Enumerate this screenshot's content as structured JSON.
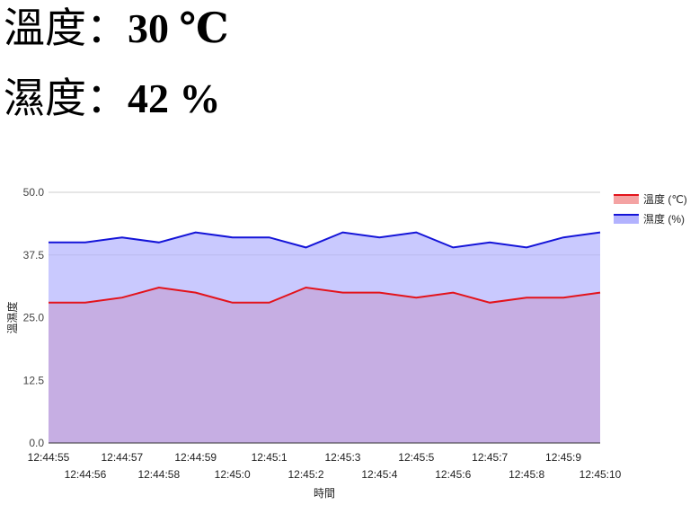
{
  "readings": {
    "temperature": {
      "label": "溫度：",
      "value": "30 ℃"
    },
    "humidity": {
      "label": "濕度：",
      "value": "42 %"
    }
  },
  "chart_data": {
    "type": "area",
    "xlabel": "時間",
    "ylabel": "溫濕度",
    "ylim": [
      0,
      50
    ],
    "y_ticks": [
      "0.0",
      "12.5",
      "25.0",
      "37.5",
      "50.0"
    ],
    "legend_position": "right",
    "grid": true,
    "x": [
      "12:44:55",
      "12:44:56",
      "12:44:57",
      "12:44:58",
      "12:44:59",
      "12:45:0",
      "12:45:1",
      "12:45:2",
      "12:45:3",
      "12:45:4",
      "12:45:5",
      "12:45:6",
      "12:45:7",
      "12:45:8",
      "12:45:9",
      "12:45:10"
    ],
    "series": [
      {
        "name": "溫度 (℃)",
        "line_color": "#e3131b",
        "fill_color": "#f4a3a3",
        "values": [
          28,
          28,
          29,
          31,
          30,
          28,
          28,
          31,
          30,
          30,
          29,
          30,
          28,
          29,
          29,
          30
        ]
      },
      {
        "name": "濕度 (%)",
        "line_color": "#1414d8",
        "fill_color": "#b2b2fe",
        "values": [
          40,
          40,
          41,
          40,
          42,
          41,
          41,
          39,
          42,
          41,
          42,
          39,
          40,
          39,
          41,
          42
        ]
      }
    ]
  }
}
